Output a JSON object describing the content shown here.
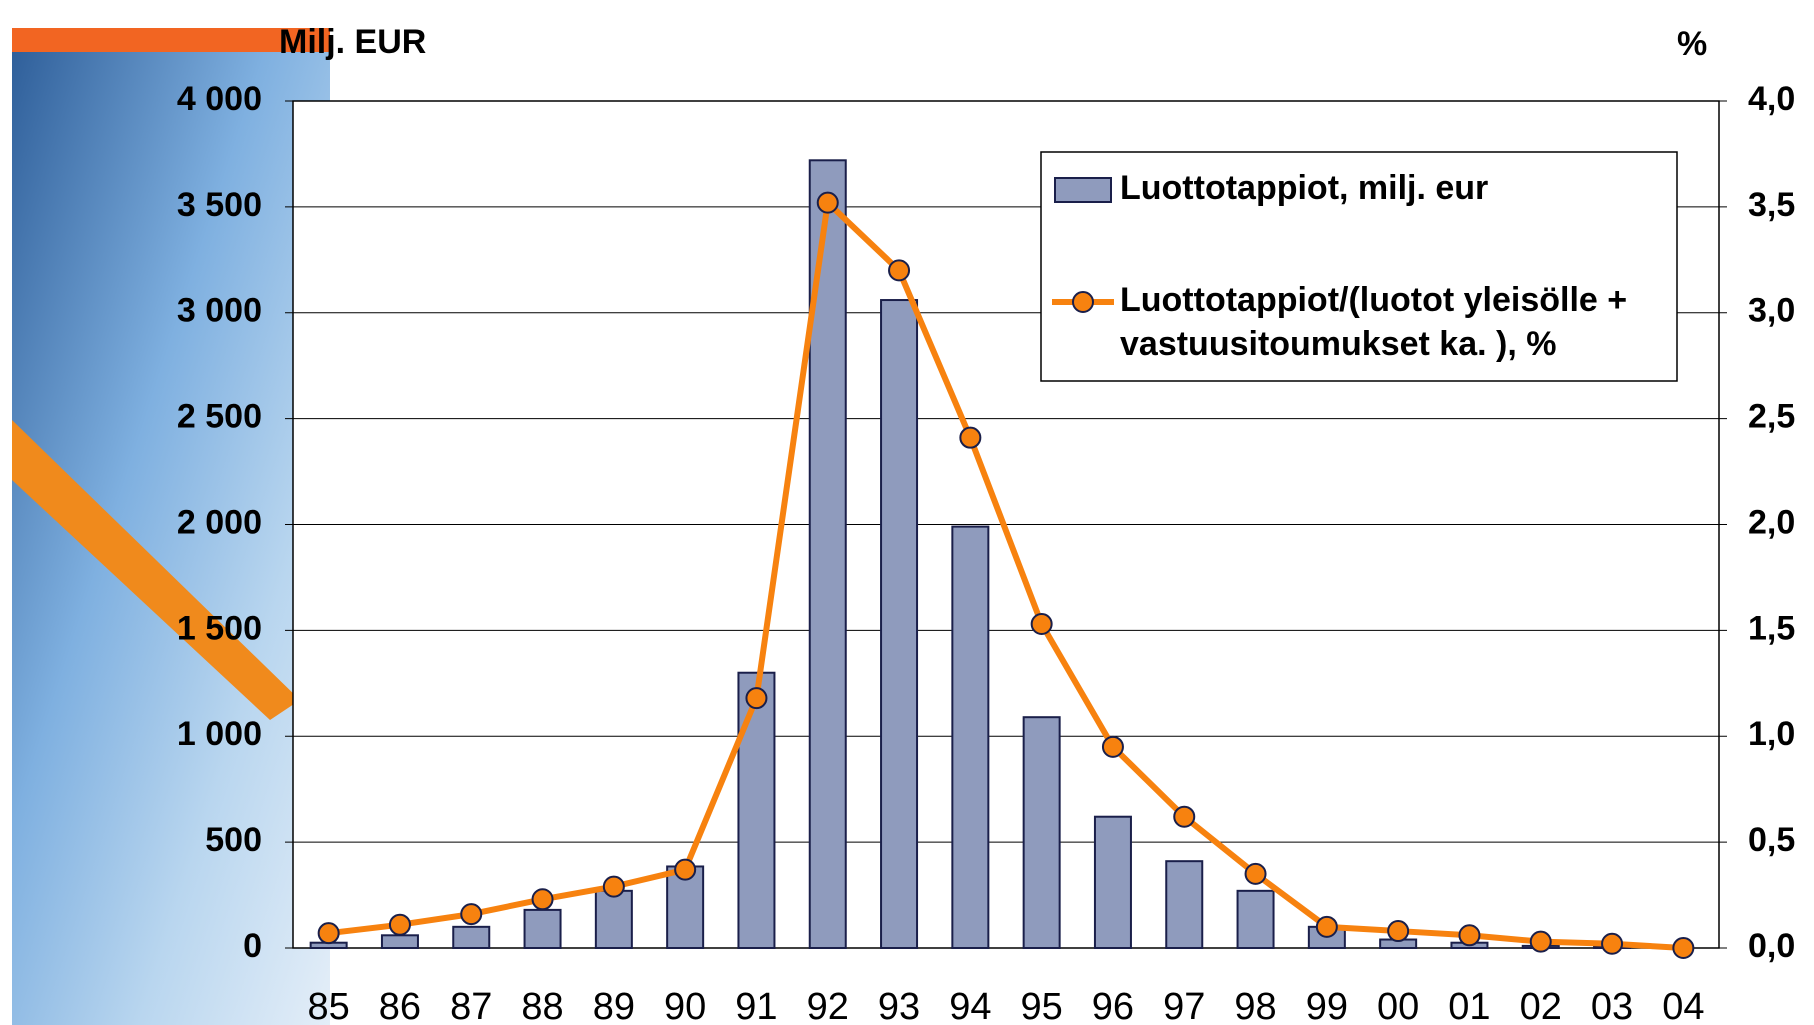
{
  "chart_data": {
    "type": "bar_line",
    "y_label": "Milj. EUR",
    "y2_label": "%",
    "categories": [
      "85",
      "86",
      "87",
      "88",
      "89",
      "90",
      "91",
      "92",
      "93",
      "94",
      "95",
      "96",
      "97",
      "98",
      "99",
      "00",
      "01",
      "02",
      "03",
      "04"
    ],
    "series": [
      {
        "name": "Luottotappiot, milj. eur",
        "type": "bar",
        "color": "#8f9bbd",
        "values": [
          25,
          60,
          100,
          180,
          270,
          385,
          1300,
          3720,
          3060,
          1990,
          1090,
          620,
          410,
          270,
          100,
          40,
          25,
          10,
          5,
          0
        ]
      },
      {
        "name": [
          "Luottotappiot/(luotot yleisölle +",
          "vastuusitoumukset ka. ), %"
        ],
        "type": "line",
        "axis": "y2",
        "color": "#f7820f",
        "values": [
          0.07,
          0.11,
          0.16,
          0.23,
          0.29,
          0.37,
          1.18,
          3.52,
          3.2,
          2.41,
          1.53,
          0.95,
          0.62,
          0.35,
          0.1,
          0.08,
          0.06,
          0.03,
          0.02,
          0.0
        ]
      }
    ],
    "ylim": [
      0,
      4000
    ],
    "yticks": [
      0,
      {
        "value": 500,
        "label": "500"
      },
      {
        "value": 1000,
        "label": "1 000"
      },
      {
        "value": 1500,
        "label": "1 500"
      },
      {
        "value": 2000,
        "label": "2 000"
      },
      {
        "value": 2500,
        "label": "2 500"
      },
      {
        "value": 3000,
        "label": "3 000"
      },
      {
        "value": 3500,
        "label": "3 500"
      },
      {
        "value": 4000,
        "label": "4 000"
      }
    ],
    "y2lim": [
      0,
      4
    ],
    "y2ticks": [
      {
        "value": 0,
        "label": "0,0"
      },
      {
        "value": 0.5,
        "label": "0,5"
      },
      {
        "value": 1,
        "label": "1,0"
      },
      {
        "value": 1.5,
        "label": "1,5"
      },
      {
        "value": 2,
        "label": "2,0"
      },
      {
        "value": 2.5,
        "label": "2,5"
      },
      {
        "value": 3,
        "label": "3,0"
      },
      {
        "value": 3.5,
        "label": "3,5"
      },
      {
        "value": 4,
        "label": "4,0"
      }
    ],
    "grid": true
  }
}
